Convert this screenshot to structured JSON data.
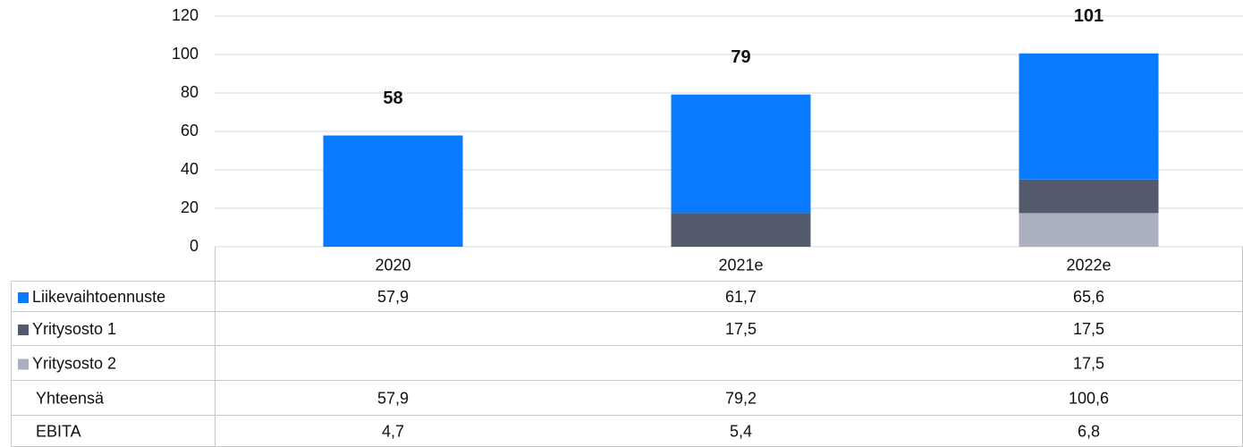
{
  "chart_data": {
    "type": "stacked_bar",
    "categories": [
      "2020",
      "2021e",
      "2022e"
    ],
    "ylim": [
      0,
      120
    ],
    "yticks": [
      0,
      20,
      40,
      60,
      80,
      100,
      120
    ],
    "grid": true,
    "series": [
      {
        "name": "Liikevaihtoennuste",
        "color": "#0a7bff",
        "values": [
          57.9,
          61.7,
          65.6
        ],
        "value_labels": [
          "57,9",
          "61,7",
          "65,6"
        ]
      },
      {
        "name": "Yritysosto 1",
        "color": "#525a6b",
        "values": [
          null,
          17.5,
          17.5
        ],
        "value_labels": [
          null,
          "17,5",
          "17,5"
        ]
      },
      {
        "name": "Yritysosto 2",
        "color": "#aab0c0",
        "values": [
          null,
          null,
          17.5
        ],
        "value_labels": [
          null,
          null,
          "17,5"
        ]
      }
    ],
    "total": {
      "name": "Yhteensä",
      "values": [
        57.9,
        79.2,
        100.6
      ],
      "value_labels": [
        "57,9",
        "79,2",
        "100,6"
      ],
      "bar_labels": [
        "58",
        "79",
        "101"
      ]
    },
    "extra_rows": [
      {
        "name": "EBITA",
        "values": [
          4.7,
          5.4,
          6.8
        ],
        "value_labels": [
          "4,7",
          "5,4",
          "6,8"
        ]
      }
    ]
  }
}
